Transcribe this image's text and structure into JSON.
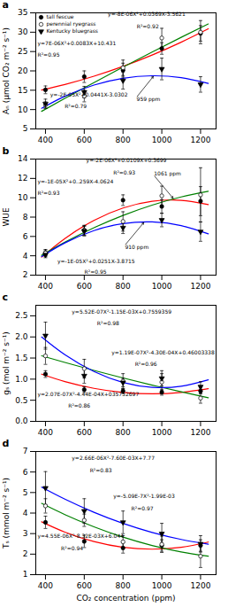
{
  "chart_data": [
    {
      "type": "scatter",
      "title": "a",
      "x": [
        400,
        600,
        800,
        1000,
        1200
      ],
      "xlim": [
        350,
        1280
      ],
      "xticks": [
        400,
        600,
        800,
        1000,
        1200
      ],
      "ylabel": "Aₙ (μmol CO₂ m⁻² s⁻¹)",
      "ylim": [
        5,
        35
      ],
      "yticks": [
        5,
        10,
        15,
        20,
        25,
        30,
        35
      ],
      "legend": "upper left",
      "series": [
        {
          "name": "tall fescue",
          "color": "#FF0000",
          "marker": "circle",
          "values": [
            15.1,
            18.5,
            20.2,
            25.8,
            29.7
          ],
          "errors": [
            1.0,
            1.5,
            1.8,
            1.5,
            2.0
          ],
          "fit_x": [
            380,
            500,
            650,
            800,
            950,
            1100,
            1240
          ],
          "fit_values": [
            15.0385,
            16.4725,
            18.619375,
            21.16,
            24.094375,
            27.4225,
            30.884
          ]
        },
        {
          "name": "perennial ryegrass",
          "color": "#008000",
          "marker": "open-circle",
          "values": [
            11.2,
            13.5,
            20.8,
            28.5,
            30.0
          ],
          "errors": [
            0.8,
            1.5,
            2.0,
            2.5,
            3.0
          ],
          "fit_x": [
            380,
            500,
            650,
            800,
            950,
            1100,
            1240
          ],
          "fit_values": [
            9.547429,
            12.888571,
            16.978214,
            20.971429,
            24.868214,
            28.668571,
            32.128571
          ]
        },
        {
          "name": "Kentucky bluegrass",
          "color": "#0000FF",
          "marker": "triangle-down",
          "values": [
            11.5,
            14.5,
            17.5,
            20.5,
            16.5
          ],
          "errors": [
            1.2,
            1.5,
            2.2,
            2.8,
            2.0
          ],
          "fit_x": [
            380,
            500,
            650,
            800,
            950,
            1100,
            1240
          ],
          "fit_values": [
            10.33,
            13.45,
            16.3375,
            18.1,
            18.7375,
            18.25,
            16.78
          ]
        }
      ],
      "annotations": [
        {
          "text": "y=7E-06X²+0.0083X+10.431"
        },
        {
          "text": "R²=0.95"
        },
        {
          "text": "y=-8E-06X²+0.0369X-3.5621"
        },
        {
          "text": "R²=0.92"
        },
        {
          "text": "y=-2E-05X²+0.0441X-3.0302"
        },
        {
          "text": "R²=0.79"
        },
        {
          "text": "959 ppm",
          "x": 959,
          "y": 18.739975,
          "text_x": 870,
          "text_y": 13.2
        }
      ]
    },
    {
      "type": "scatter",
      "title": "b",
      "x": [
        400,
        600,
        800,
        1000,
        1200
      ],
      "xlim": [
        350,
        1280
      ],
      "xticks": [
        400,
        600,
        800,
        1000,
        1200
      ],
      "ylabel": "WUE",
      "ylim": [
        2,
        14
      ],
      "yticks": [
        2,
        4,
        6,
        8,
        10,
        12,
        14
      ],
      "series": [
        {
          "name": "tall fescue",
          "color": "#FF0000",
          "marker": "circle",
          "values": [
            4.3,
            6.65,
            9.75,
            9.1,
            9.65
          ],
          "errors": [
            0.35,
            0.5,
            0.55,
            0.7,
            1.5
          ],
          "fit_x": [
            380,
            500,
            650,
            800,
            950,
            1100,
            1240
          ],
          "fit_values": [
            3.86325,
            5.78625,
            7.6584375,
            8.94,
            9.6309375,
            9.73125,
            9.292
          ]
        },
        {
          "name": "perennial ryegrass",
          "color": "#008000",
          "marker": "open-circle",
          "values": [
            4.3,
            6.6,
            7.55,
            10.2,
            10.3
          ],
          "errors": [
            0.3,
            0.5,
            1.0,
            1.0,
            2.8
          ],
          "fit_x": [
            380,
            500,
            650,
            800,
            950,
            1100,
            1240
          ],
          "fit_values": [
            4.049214,
            5.401786,
            6.897232,
            8.175714,
            9.237232,
            10.081786,
            10.674286
          ]
        },
        {
          "name": "Kentucky bluegrass",
          "color": "#0000FF",
          "marker": "triangle-down",
          "values": [
            4.1,
            6.55,
            6.9,
            7.7,
            6.5
          ],
          "errors": [
            0.3,
            0.5,
            0.6,
            0.7,
            1.0
          ],
          "fit_x": [
            380,
            500,
            650,
            800,
            950,
            1100,
            1240
          ],
          "fit_values": [
            3.921321,
            5.335179,
            6.607098,
            7.328571,
            7.499598,
            7.120179,
            6.269429
          ]
        }
      ],
      "annotations": [
        {
          "text": "y=-1E-05X²+0..259X-4.0624"
        },
        {
          "text": "R²=0.93"
        },
        {
          "text": "y=-2E-06X²+0.0109X+0.3699"
        },
        {
          "text": "R²=0.93"
        },
        {
          "text": "y=-1E-05X²+0.0251X-3.8715"
        },
        {
          "text": "R²=0.95"
        },
        {
          "text": "1061 ppm",
          "x": 1061,
          "y": 9.883074,
          "text_x": 960,
          "text_y": 12.3
        },
        {
          "text": "910 ppm",
          "x": 910,
          "y": 7.507812,
          "text_x": 810,
          "text_y": 5.1
        }
      ]
    },
    {
      "type": "scatter",
      "title": "c",
      "x": [
        400,
        600,
        800,
        1000,
        1200
      ],
      "xlim": [
        350,
        1280
      ],
      "xticks": [
        400,
        600,
        800,
        1000,
        1200
      ],
      "ylabel": "gₛ (mol m⁻² s⁻¹)",
      "ylim": [
        0.0,
        2.75
      ],
      "yticks": [
        {
          "value": 0,
          "label": "0.0"
        },
        0.5,
        {
          "value": 1,
          "label": "1.0"
        },
        1.5,
        {
          "value": 2,
          "label": "2.0"
        },
        2.5
      ],
      "series": [
        {
          "name": "tall fescue",
          "color": "#FF0000",
          "marker": "circle",
          "values": [
            1.12,
            0.75,
            0.72,
            0.69,
            0.72
          ],
          "errors": [
            0.08,
            0.07,
            0.06,
            0.07,
            0.07
          ],
          "fit_x": [
            380,
            500,
            650,
            800,
            950,
            1100,
            1240
          ],
          "fit_values": [
            1.118314,
            0.943286,
            0.782357,
            0.685714,
            0.653357,
            0.685286,
            0.773086
          ]
        },
        {
          "name": "perennial ryegrass",
          "color": "#008000",
          "marker": "open-circle",
          "values": [
            1.55,
            1.25,
            0.95,
            0.93,
            0.55
          ],
          "errors": [
            0.2,
            0.22,
            0.18,
            0.2,
            0.12
          ],
          "fit_x": [
            380,
            500,
            650,
            800,
            950,
            1100,
            1240
          ],
          "fit_values": [
            1.553857,
            1.396143,
            1.207679,
            1.028857,
            0.859679,
            0.700143,
            0.559943
          ]
        },
        {
          "name": "Kentucky bluegrass",
          "color": "#0000FF",
          "marker": "triangle-down",
          "values": [
            2.03,
            1.08,
            0.92,
            1.02,
            0.82
          ],
          "errors": [
            0.32,
            0.18,
            0.1,
            0.18,
            0.12
          ],
          "fit_x": [
            380,
            500,
            650,
            800,
            950,
            1100,
            1240
          ],
          "fit_values": [
            1.997771,
            1.577429,
            1.179286,
            0.922571,
            0.807286,
            0.833429,
            0.985429
          ]
        }
      ],
      "annotations": [
        {
          "text": "y=5.52E-07X²-1.15E-03X+0.7559359"
        },
        {
          "text": "R²=0.98"
        },
        {
          "text": "y=1.19E-07X²-4.30E-04X+0.46003338"
        },
        {
          "text": "R²=0.96"
        },
        {
          "text": "y=2.07E-07X²-4.44E-04X+035752697"
        },
        {
          "text": "R²=0.86"
        }
      ]
    },
    {
      "type": "scatter",
      "title": "d",
      "x": [
        400,
        600,
        800,
        1000,
        1200
      ],
      "xlim": [
        350,
        1280
      ],
      "xticks": [
        400,
        600,
        800,
        1000,
        1200
      ],
      "xlabel": "CO₂ concentration (ppm)",
      "ylabel": "Tₛ (mmol m⁻² s⁻¹)",
      "ylim": [
        1,
        7
      ],
      "yticks": [
        1,
        2,
        3,
        4,
        5,
        6,
        7
      ],
      "series": [
        {
          "name": "tall fescue",
          "color": "#FF0000",
          "marker": "circle",
          "values": [
            3.55,
            2.62,
            2.3,
            2.42,
            2.42
          ],
          "errors": [
            0.3,
            0.3,
            0.25,
            0.28,
            0.28
          ],
          "fit_x": [
            380,
            500,
            650,
            800,
            950,
            1100,
            1240
          ],
          "fit_values": [
            3.574529,
            3.072071,
            2.610339,
            2.333429,
            2.241339,
            2.334071,
            2.587371
          ]
        },
        {
          "name": "perennial ryegrass",
          "color": "#008000",
          "marker": "open-circle",
          "values": [
            4.35,
            3.65,
            2.6,
            2.48,
            1.9
          ],
          "errors": [
            0.35,
            0.3,
            0.3,
            0.4,
            0.55
          ],
          "fit_x": [
            380,
            500,
            650,
            800,
            950,
            1100,
            1240
          ],
          "fit_values": [
            4.472107,
            3.927393,
            3.331116,
            2.828857,
            2.420616,
            2.106393,
            1.897943
          ]
        },
        {
          "name": "Kentucky bluegrass",
          "color": "#0000FF",
          "marker": "triangle-down",
          "values": [
            5.22,
            4.1,
            3.55,
            3.0,
            2.5
          ],
          "errors": [
            0.8,
            0.6,
            0.55,
            0.5,
            0.4
          ],
          "fit_x": [
            380,
            500,
            650,
            800,
            950,
            1100,
            1240
          ],
          "fit_values": [
            5.260857,
            4.677143,
            4.037179,
            3.496857,
            3.056179,
            2.715143,
            2.486743
          ]
        }
      ],
      "annotations": [
        {
          "text": "y=2.66E-06X²-7.60E-03X+7.77"
        },
        {
          "text": "R²=0.83"
        },
        {
          "text": "y=-5.09E-7X²-1.99E-03"
        },
        {
          "text": "R²=0.97"
        },
        {
          "text": "y=4.55E-06X²-8.32E-03X+6.044"
        },
        {
          "text": "R²=0.94"
        }
      ]
    }
  ]
}
